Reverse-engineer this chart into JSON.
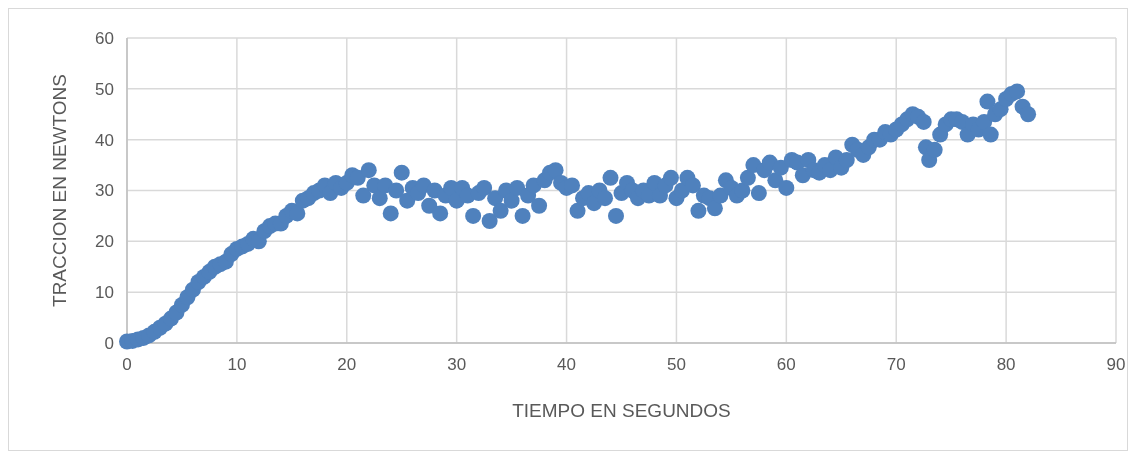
{
  "chart_data": {
    "type": "scatter",
    "xlabel": "TIEMPO EN SEGUNDOS",
    "ylabel": "TRACCION EN NEWTONS",
    "xlim": [
      0,
      90
    ],
    "ylim": [
      0,
      60
    ],
    "xticks": [
      0,
      10,
      20,
      30,
      40,
      50,
      60,
      70,
      80,
      90
    ],
    "yticks": [
      0,
      10,
      20,
      30,
      40,
      50,
      60
    ],
    "grid": true,
    "marker": "circle",
    "series": [
      {
        "color": "#4f81bd",
        "x": [
          0,
          0.5,
          1,
          1.5,
          2,
          2.5,
          3,
          3.5,
          4,
          4.5,
          5,
          5.5,
          6,
          6.5,
          7,
          7.5,
          8,
          8.5,
          9,
          9.5,
          10,
          10.5,
          11,
          11.5,
          12,
          12.5,
          13,
          13.5,
          14,
          14.5,
          15,
          15.5,
          16,
          16.5,
          17,
          17.5,
          18,
          18.5,
          19,
          19.5,
          20,
          20.5,
          21,
          21.5,
          22,
          22.5,
          23,
          23.5,
          24,
          24.5,
          25,
          25.5,
          26,
          26.5,
          27,
          27.5,
          28,
          28.5,
          29,
          29.5,
          30,
          30.5,
          31,
          31.5,
          32,
          32.5,
          33,
          33.5,
          34,
          34.5,
          35,
          35.5,
          36,
          36.5,
          37,
          37.5,
          38,
          38.5,
          39,
          39.5,
          40,
          40.5,
          41,
          41.5,
          42,
          42.5,
          43,
          43.5,
          44,
          44.5,
          45,
          45.5,
          46,
          46.5,
          47,
          47.5,
          48,
          48.5,
          49,
          49.5,
          50,
          50.5,
          51,
          51.5,
          52,
          52.5,
          53,
          53.5,
          54,
          54.5,
          55,
          55.5,
          56,
          56.5,
          57,
          57.5,
          58,
          58.5,
          59,
          59.5,
          60,
          60.5,
          61,
          61.5,
          62,
          62.5,
          63,
          63.5,
          64,
          64.5,
          65,
          65.5,
          66,
          66.5,
          67,
          67.5,
          68,
          68.5,
          69,
          69.5,
          70,
          70.5,
          71,
          71.5,
          72,
          72.5,
          72.7,
          73,
          73.5,
          74,
          74.5,
          75,
          75.5,
          76,
          76.5,
          77,
          77.5,
          78,
          78.3,
          78.6,
          79,
          79.5,
          80,
          80.5,
          81,
          81.5,
          82
        ],
        "values": [
          0.3,
          0.4,
          0.7,
          1,
          1.5,
          2.2,
          3,
          3.8,
          4.8,
          6,
          7.5,
          9,
          10.5,
          12,
          13,
          14,
          15,
          15.5,
          16,
          17.5,
          18.5,
          19,
          19.5,
          20.5,
          20,
          22,
          23,
          23.5,
          23.5,
          25,
          26,
          25.5,
          28,
          28.5,
          29.5,
          30,
          31,
          29.5,
          31.5,
          30.5,
          31.5,
          33,
          32.5,
          29,
          34,
          31,
          28.5,
          31,
          25.5,
          30,
          33.5,
          28,
          30.5,
          29.5,
          31,
          27,
          30,
          25.5,
          29,
          30.5,
          28,
          30.5,
          29,
          25,
          29.5,
          30.5,
          24,
          28.5,
          26,
          30,
          28,
          30.5,
          25,
          29,
          31,
          27,
          32,
          33.5,
          34,
          31.5,
          30.5,
          31,
          26,
          28.5,
          29.5,
          27.5,
          30,
          28.5,
          32.5,
          25,
          29.5,
          31.5,
          30,
          28.5,
          30,
          29,
          31.5,
          29,
          31,
          32.5,
          28.5,
          30,
          32.5,
          31,
          26,
          29,
          28.5,
          26.5,
          29,
          32,
          30.5,
          29,
          30,
          32.5,
          35,
          29.5,
          34,
          35.5,
          32,
          34.5,
          30.5,
          36,
          35.5,
          33,
          36,
          34,
          33.5,
          35,
          34,
          36.5,
          34.5,
          36,
          39,
          38,
          37,
          38.5,
          40,
          40,
          41.5,
          41,
          42,
          43,
          44,
          45,
          44.5,
          43.5,
          38.5,
          36,
          38,
          41,
          43,
          44,
          44,
          43.5,
          41,
          43,
          42,
          43.5,
          47.5,
          41,
          45,
          46,
          48,
          49,
          49.5,
          46.5,
          45
        ]
      }
    ]
  }
}
